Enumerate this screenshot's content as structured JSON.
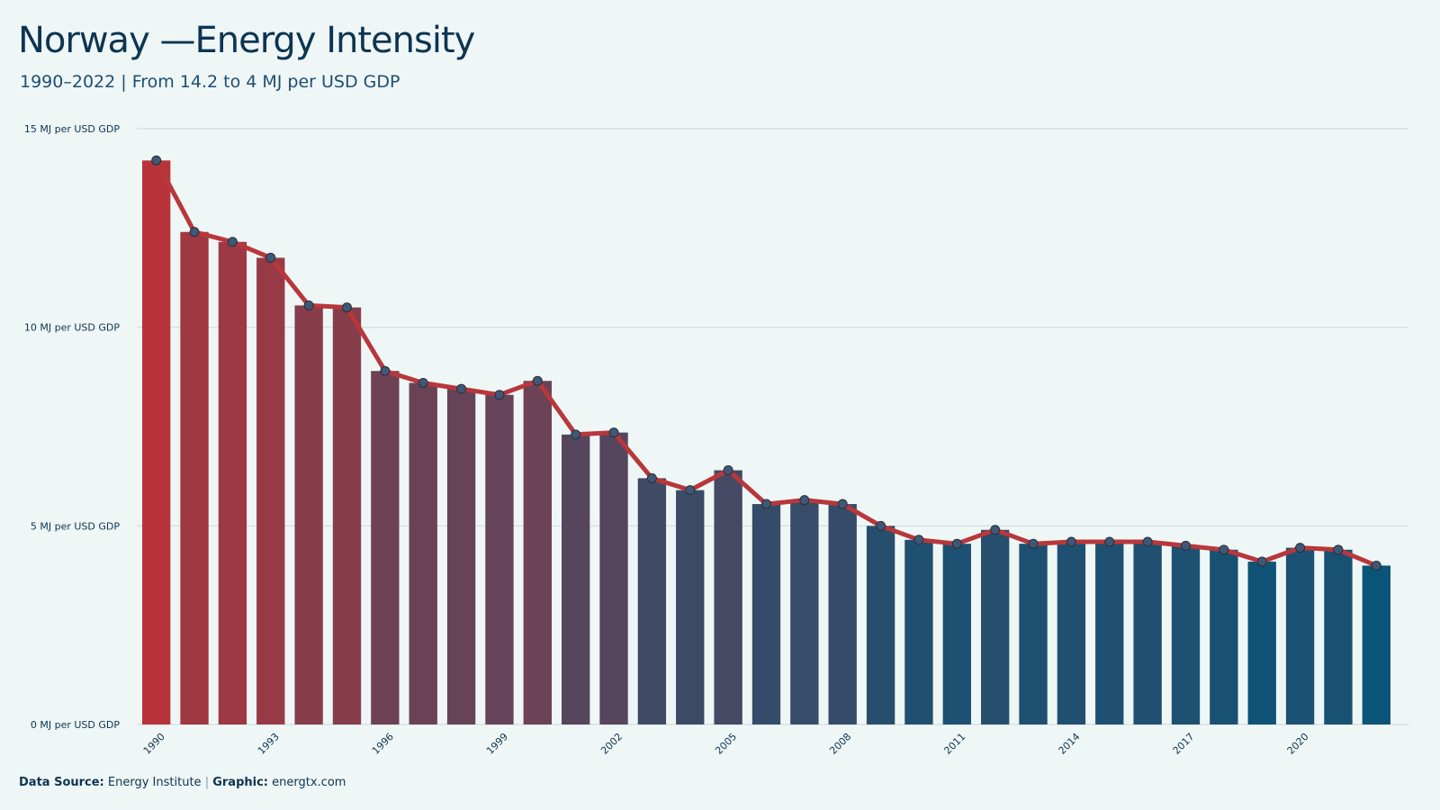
{
  "header": {
    "title": "Norway —Energy Intensity",
    "subtitle": "1990–2022 | From 14.2 to 4 MJ per USD GDP"
  },
  "footer": {
    "source_label": "Data Source:",
    "source_value": "Energy Institute",
    "separator": "|",
    "graphic_label": "Graphic:",
    "graphic_value": "energtx.com"
  },
  "colors": {
    "background": "#eff6f6",
    "line": "#b8373b",
    "high": "#b8343a",
    "low": "#0a5478",
    "point_fill": "#3e5876",
    "grid": "#d3dde0"
  },
  "chart_data": {
    "type": "bar",
    "x": [
      1990,
      1991,
      1992,
      1993,
      1994,
      1995,
      1996,
      1997,
      1998,
      1999,
      2000,
      2001,
      2002,
      2003,
      2004,
      2005,
      2006,
      2007,
      2008,
      2009,
      2010,
      2011,
      2012,
      2013,
      2014,
      2015,
      2016,
      2017,
      2018,
      2019,
      2020,
      2021,
      2022
    ],
    "values": [
      14.2,
      12.4,
      12.15,
      11.75,
      10.55,
      10.5,
      8.9,
      8.6,
      8.45,
      8.3,
      8.65,
      7.3,
      7.35,
      6.2,
      5.9,
      6.4,
      5.55,
      5.65,
      5.55,
      5.0,
      4.65,
      4.55,
      4.9,
      4.55,
      4.6,
      4.6,
      4.6,
      4.5,
      4.4,
      4.1,
      4.45,
      4.4,
      4.0
    ],
    "overlay": "line-with-markers",
    "x_tick_labels": [
      "1990",
      "1993",
      "1996",
      "1999",
      "2002",
      "2005",
      "2008",
      "2011",
      "2014",
      "2017",
      "2020"
    ],
    "y_ticks": [
      0,
      5,
      10,
      15
    ],
    "y_tick_labels": [
      "0 MJ per USD GDP",
      "5 MJ per USD GDP",
      "10 MJ per USD GDP",
      "15 MJ per USD GDP"
    ],
    "ylim": [
      0,
      15
    ],
    "grid": "horizontal",
    "legend": "none"
  }
}
